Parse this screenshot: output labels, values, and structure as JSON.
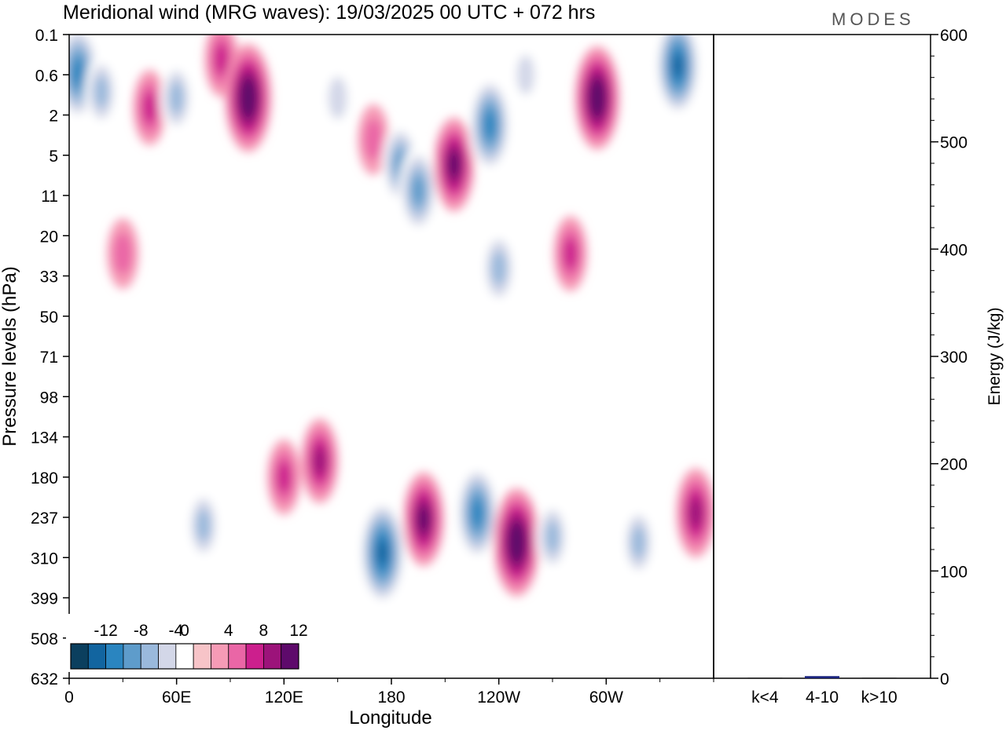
{
  "title": "Meridional wind (MRG waves):  19/03/2025  00 UTC  + 072 hrs",
  "logo_text": "MODES",
  "chart_data": [
    {
      "type": "heatmap",
      "title": "Meridional wind (MRG waves):  19/03/2025  00 UTC  + 072 hrs",
      "xlabel": "Longitude",
      "ylabel": "Pressure levels (hPa)",
      "x_ticks": [
        "0",
        "60E",
        "120E",
        "180",
        "120W",
        "60W"
      ],
      "x_tick_degrees": [
        0,
        60,
        120,
        180,
        240,
        300
      ],
      "xlim": [
        0,
        360
      ],
      "y_ticks": [
        "0.1",
        "0.6",
        "2",
        "5",
        "11",
        "20",
        "33",
        "50",
        "71",
        "98",
        "134",
        "180",
        "237",
        "310",
        "399",
        "508",
        "632"
      ],
      "y_scale": "log (pressure levels, top to bottom)",
      "colorbar": {
        "labels": [
          "-12",
          "-8",
          "-4",
          "0",
          "4",
          "8",
          "12"
        ],
        "levels": [
          -14,
          -12,
          -10,
          -8,
          -6,
          -4,
          -2,
          2,
          4,
          6,
          8,
          10,
          12,
          14
        ],
        "colors": [
          "#0b3f5e",
          "#1265a0",
          "#2a85c0",
          "#5e9ccb",
          "#9ab9dc",
          "#d3d7e8",
          "#ffffff",
          "#f7c4c8",
          "#f69bb6",
          "#ea66a6",
          "#cc1f8d",
          "#9c137a",
          "#5e0a6b"
        ]
      },
      "cells": [
        {
          "lon": 5,
          "p": 0.55,
          "v": -11
        },
        {
          "lon": 18,
          "p": 1.0,
          "v": -6
        },
        {
          "lon": 45,
          "p": 1.6,
          "v": 6
        },
        {
          "lon": 60,
          "p": 1.2,
          "v": -6
        },
        {
          "lon": 85,
          "p": 0.3,
          "v": 6
        },
        {
          "lon": 100,
          "p": 1.2,
          "v": 13
        },
        {
          "lon": 150,
          "p": 1.2,
          "v": -5
        },
        {
          "lon": 170,
          "p": 3.5,
          "v": 5
        },
        {
          "lon": 185,
          "p": 6,
          "v": -8
        },
        {
          "lon": 195,
          "p": 10,
          "v": -9
        },
        {
          "lon": 215,
          "p": 6,
          "v": 10
        },
        {
          "lon": 235,
          "p": 2.5,
          "v": -11
        },
        {
          "lon": 255,
          "p": 0.6,
          "v": -4
        },
        {
          "lon": 295,
          "p": 1.2,
          "v": 12
        },
        {
          "lon": 340,
          "p": 0.4,
          "v": -12
        },
        {
          "lon": 30,
          "p": 25,
          "v": 5
        },
        {
          "lon": 240,
          "p": 30,
          "v": -7
        },
        {
          "lon": 280,
          "p": 25,
          "v": 6
        },
        {
          "lon": 175,
          "p": 300,
          "v": -13
        },
        {
          "lon": 198,
          "p": 240,
          "v": 10
        },
        {
          "lon": 228,
          "p": 230,
          "v": -11
        },
        {
          "lon": 250,
          "p": 280,
          "v": 13
        },
        {
          "lon": 270,
          "p": 270,
          "v": -6
        },
        {
          "lon": 350,
          "p": 230,
          "v": 9
        },
        {
          "lon": 140,
          "p": 160,
          "v": 8
        },
        {
          "lon": 120,
          "p": 180,
          "v": 6
        },
        {
          "lon": 75,
          "p": 250,
          "v": -6
        },
        {
          "lon": 318,
          "p": 280,
          "v": -6
        }
      ]
    },
    {
      "type": "bar",
      "categories": [
        "k<4",
        "4-10",
        "k>10"
      ],
      "values": [
        0,
        2,
        0
      ],
      "ylabel": "Energy (J/kg)",
      "ylim": [
        0,
        600
      ],
      "y_ticks": [
        "0",
        "100",
        "200",
        "300",
        "400",
        "500",
        "600"
      ],
      "colors": [
        "#1a237e",
        "#1a237e",
        "#1a237e"
      ]
    }
  ]
}
